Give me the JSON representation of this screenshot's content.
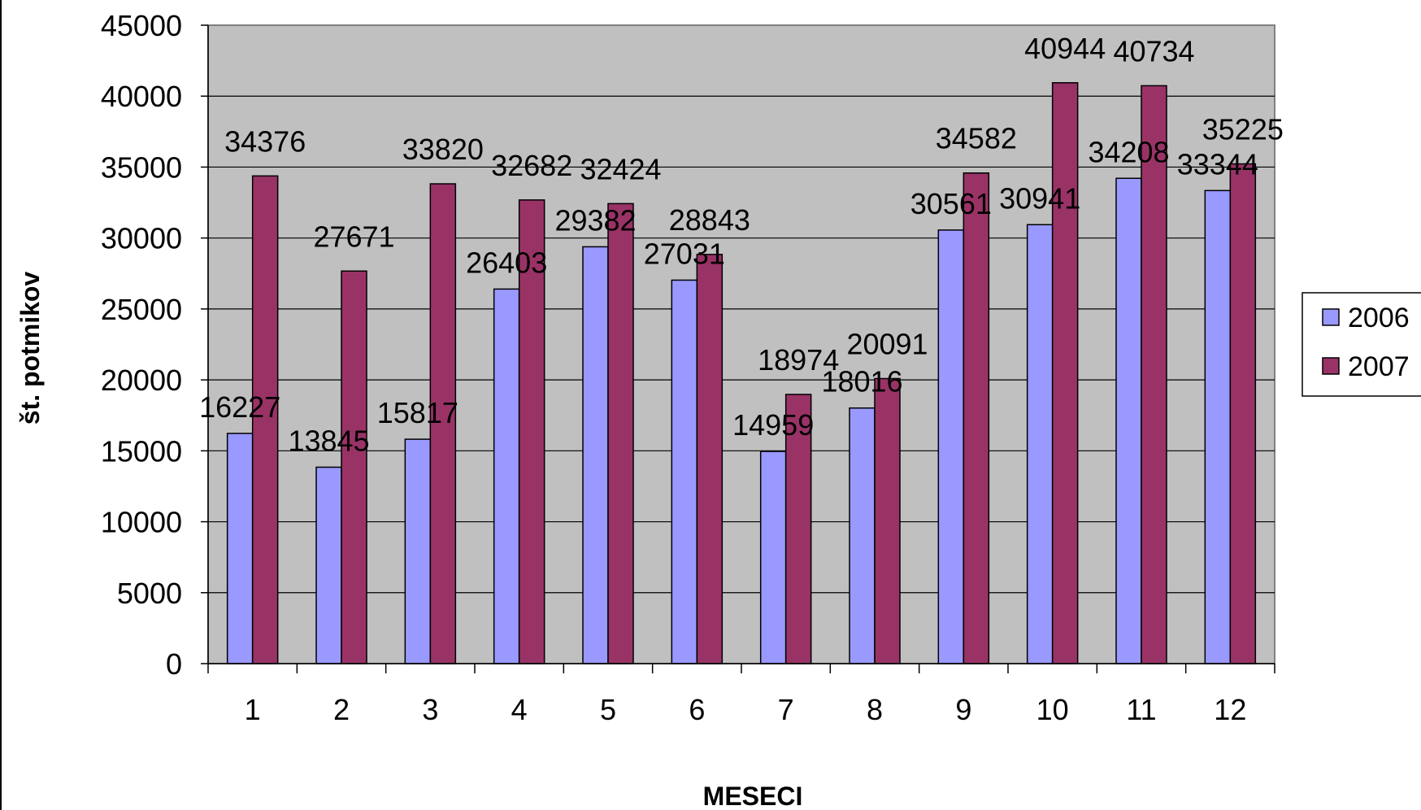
{
  "chart_data": {
    "type": "bar",
    "title": "",
    "xlabel": "MESECI",
    "ylabel": "št. potmikov",
    "categories": [
      "1",
      "2",
      "3",
      "4",
      "5",
      "6",
      "7",
      "8",
      "9",
      "10",
      "11",
      "12"
    ],
    "series": [
      {
        "name": "2006",
        "color": "#9999ff",
        "values": [
          16227,
          13845,
          15817,
          26403,
          29382,
          27031,
          14959,
          18016,
          30561,
          30941,
          34208,
          33344
        ]
      },
      {
        "name": "2007",
        "color": "#993366",
        "values": [
          34376,
          27671,
          33820,
          32682,
          32424,
          28843,
          18974,
          20091,
          34582,
          40944,
          40734,
          35225
        ]
      }
    ],
    "ylim": [
      0,
      45000
    ],
    "yticks": [
      0,
      5000,
      10000,
      15000,
      20000,
      25000,
      30000,
      35000,
      40000,
      45000
    ],
    "grid": true,
    "plot_background": "#c0c0c0",
    "legend_position": "right"
  }
}
